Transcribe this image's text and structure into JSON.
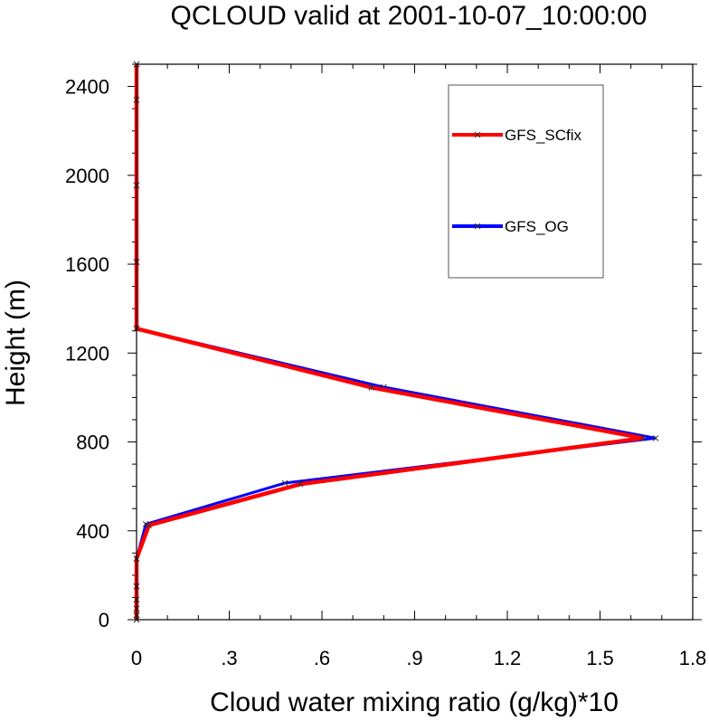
{
  "chart_data": {
    "type": "line",
    "title": "QCLOUD valid at 2001-10-07_10:00:00",
    "xlabel": "Cloud water mixing ratio (g/kg)*10",
    "ylabel": "Height (m)",
    "xlim": [
      0,
      1.8
    ],
    "ylim": [
      0,
      2500
    ],
    "xticks": [
      0,
      0.3,
      0.6,
      0.9,
      1.2,
      1.5,
      1.8
    ],
    "xtick_labels": [
      "0",
      ".3",
      ".6",
      ".9",
      "1.2",
      "1.5",
      "1.8"
    ],
    "yticks": [
      0,
      400,
      800,
      1200,
      1600,
      2000,
      2400
    ],
    "ytick_labels": [
      "0",
      "400",
      "800",
      "1200",
      "1600",
      "2000",
      "2400"
    ],
    "grid": false,
    "legend_position": "top-right",
    "series": [
      {
        "name": "GFS_OG",
        "color": "#0000ff",
        "marker": "x",
        "points": [
          [
            0,
            0
          ],
          [
            0,
            20
          ],
          [
            0,
            50
          ],
          [
            0,
            90
          ],
          [
            0,
            150
          ],
          [
            0,
            275
          ],
          [
            0.03,
            430
          ],
          [
            0.48,
            615
          ],
          [
            1.68,
            817
          ],
          [
            0.8,
            1047
          ],
          [
            0,
            1310
          ],
          [
            0,
            1610
          ],
          [
            0,
            1955
          ],
          [
            0,
            2340
          ],
          [
            0,
            2500
          ]
        ]
      },
      {
        "name": "GFS_SCfix",
        "color": "#ff0000",
        "marker": "x",
        "points": [
          [
            0,
            0
          ],
          [
            0,
            20
          ],
          [
            0,
            50
          ],
          [
            0,
            90
          ],
          [
            0,
            150
          ],
          [
            0,
            275
          ],
          [
            0.04,
            425
          ],
          [
            0.53,
            610
          ],
          [
            1.64,
            817
          ],
          [
            0.76,
            1045
          ],
          [
            0,
            1310
          ],
          [
            0,
            1610
          ],
          [
            0,
            1955
          ],
          [
            0,
            2340
          ],
          [
            0,
            2500
          ]
        ]
      }
    ]
  }
}
